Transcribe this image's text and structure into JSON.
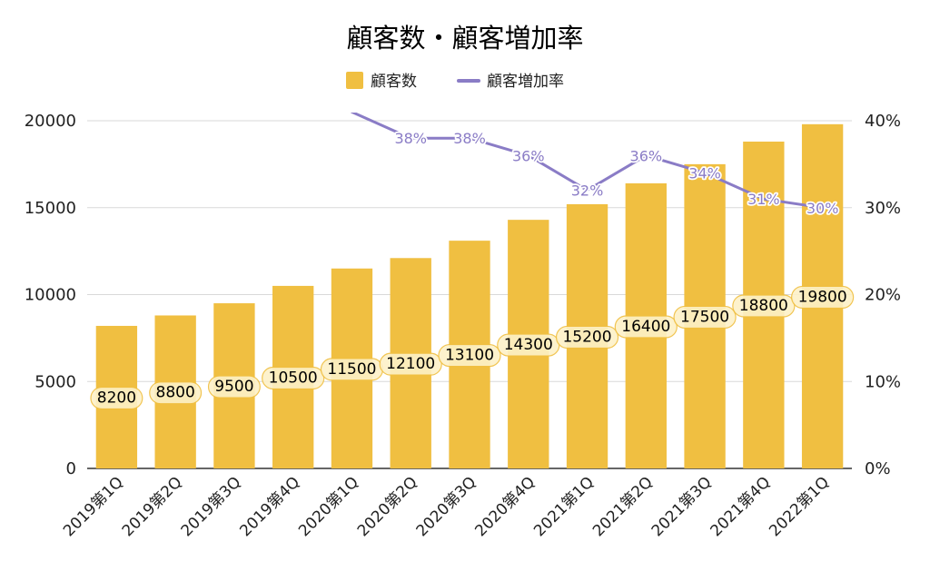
{
  "chart_data": {
    "type": "bar",
    "title": "顧客数・顧客増加率",
    "xlabel": "",
    "ylabel": "",
    "ylim": [
      0,
      20000
    ],
    "y2lim": [
      0,
      0.4
    ],
    "grid": true,
    "legend_position": "top",
    "categories": [
      "2019第1Q",
      "2019第2Q",
      "2019第3Q",
      "2019第4Q",
      "2020第1Q",
      "2020第2Q",
      "2020第3Q",
      "2020第4Q",
      "2021第1Q",
      "2021第2Q",
      "2021第3Q",
      "2021第4Q",
      "2022第1Q"
    ],
    "y_ticks": [
      "0",
      "5000",
      "10000",
      "15000",
      "20000"
    ],
    "y2_ticks": [
      "0%",
      "10%",
      "20%",
      "30%",
      "40%"
    ],
    "series": [
      {
        "name": "顧客数",
        "type": "bar",
        "axis": "left",
        "color": "#f0bf41",
        "values": [
          8200,
          8800,
          9500,
          10500,
          11500,
          12100,
          13100,
          14300,
          15200,
          16400,
          17500,
          18800,
          19800
        ],
        "labels": [
          "8200",
          "8800",
          "9500",
          "10500",
          "11500",
          "12100",
          "13100",
          "14300",
          "15200",
          "16400",
          "17500",
          "18800",
          "19800"
        ]
      },
      {
        "name": "顧客増加率",
        "type": "line",
        "axis": "right",
        "color": "#8a7cc6",
        "values": [
          null,
          null,
          null,
          null,
          0.41,
          0.38,
          0.38,
          0.36,
          0.32,
          0.36,
          0.34,
          0.31,
          0.3
        ],
        "labels": [
          "",
          "",
          "",
          "",
          "",
          "38%",
          "38%",
          "36%",
          "32%",
          "36%",
          "34%",
          "31%",
          "30%"
        ]
      }
    ]
  }
}
